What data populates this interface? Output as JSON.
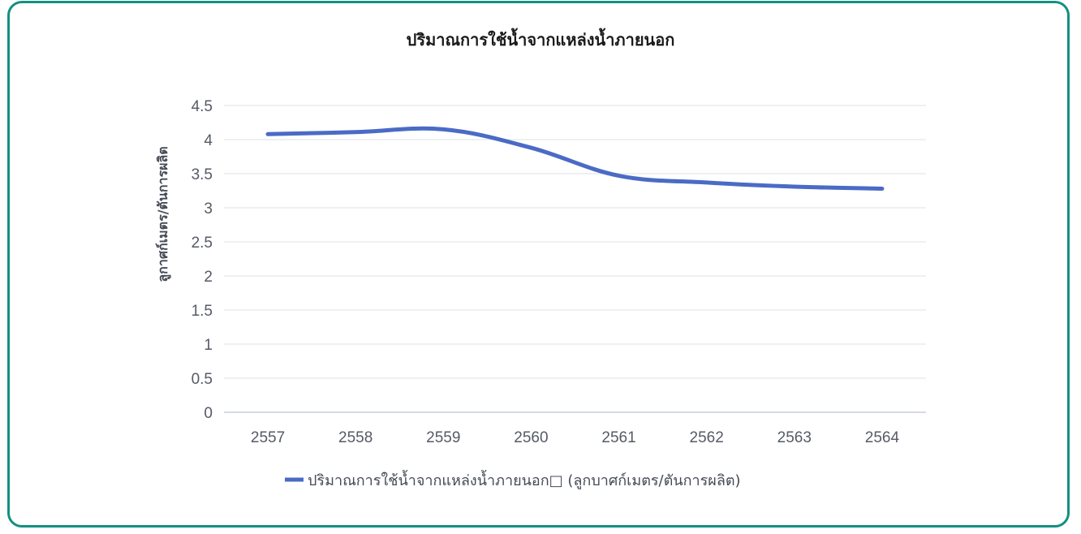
{
  "chart_data": {
    "type": "line",
    "title": "ปริมาณการใช้น้ำจากแหล่งน้ำภายนอก",
    "ylabel": "ลูกาศก์เมตร/ตันการผลิต",
    "xlabel": "",
    "categories": [
      "2557",
      "2558",
      "2559",
      "2560",
      "2561",
      "2562",
      "2563",
      "2564"
    ],
    "yticks": [
      "0",
      "0.5",
      "1",
      "1.5",
      "2",
      "2.5",
      "3",
      "3.5",
      "4",
      "4.5"
    ],
    "ylim": [
      0,
      4.5
    ],
    "grid": true,
    "legend_position": "bottom",
    "series": [
      {
        "name": "ปริมาณการใช้น้ำจากแหล่งน้ำภายนอก□ (ลูกบาศก์เมตร/ตันการผลิต)",
        "values": [
          4.08,
          4.11,
          4.15,
          3.88,
          3.47,
          3.37,
          3.31,
          3.28
        ],
        "color": "#4a6bc5"
      }
    ]
  }
}
